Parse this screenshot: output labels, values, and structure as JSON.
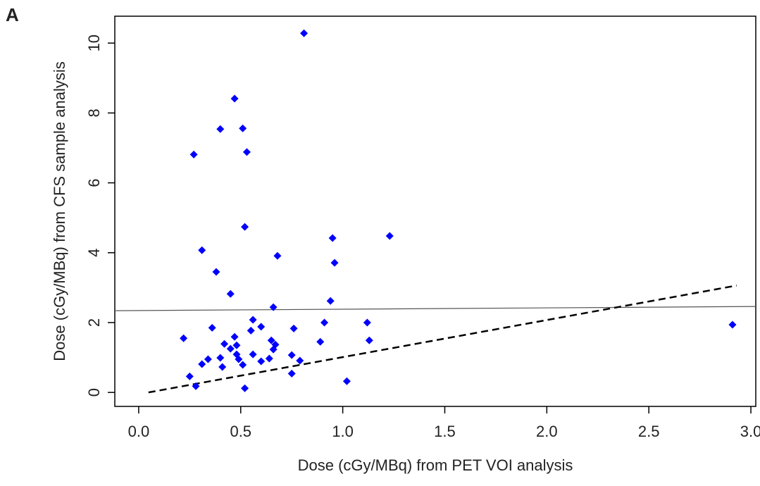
{
  "chart_data": {
    "type": "scatter",
    "panel_label": "A",
    "x_label": "Dose (cGy/MBq) from PET VOI analysis",
    "y_label": "Dose (cGy/MBq) from CFS sample analysis",
    "xlim": [
      -0.117,
      3.024
    ],
    "ylim": [
      -0.4,
      10.77
    ],
    "xticks": [
      {
        "value": 0,
        "label": "0.0"
      },
      0.5,
      {
        "value": 1,
        "label": "1.0"
      },
      1.5,
      {
        "value": 2,
        "label": "2.0"
      },
      2.5,
      {
        "value": 3,
        "label": "3.0"
      }
    ],
    "yticks": [
      0,
      2,
      4,
      6,
      8,
      10
    ],
    "color": "#0000ff",
    "x": [
      0.81,
      0.47,
      0.4,
      0.51,
      0.27,
      0.53,
      0.52,
      0.31,
      1.23,
      0.95,
      0.68,
      0.96,
      0.38,
      0.45,
      0.94,
      0.66,
      0.56,
      0.22,
      0.36,
      0.55,
      0.6,
      0.76,
      0.91,
      1.12,
      2.91,
      0.47,
      0.42,
      0.45,
      0.65,
      0.67,
      0.66,
      0.48,
      0.89,
      1.13,
      0.48,
      0.49,
      0.56,
      0.4,
      0.41,
      0.34,
      0.31,
      0.51,
      0.6,
      0.64,
      0.75,
      0.79,
      0.75,
      0.25,
      0.28,
      0.52,
      1.02
    ],
    "y": [
      10.28,
      8.41,
      7.54,
      7.56,
      6.81,
      6.88,
      4.74,
      4.07,
      4.48,
      4.42,
      3.91,
      3.71,
      3.45,
      2.82,
      2.62,
      2.44,
      2.08,
      1.55,
      1.85,
      1.77,
      1.88,
      1.83,
      2.0,
      2.0,
      1.94,
      1.59,
      1.39,
      1.25,
      1.49,
      1.37,
      1.23,
      1.35,
      1.45,
      1.49,
      1.09,
      0.95,
      1.09,
      0.99,
      0.73,
      0.95,
      0.81,
      0.79,
      0.89,
      0.97,
      1.07,
      0.91,
      0.54,
      0.46,
      0.18,
      0.12,
      0.32
    ],
    "reference_lines": [
      {
        "x": [
          -0.117,
          3.024
        ],
        "y": [
          2.34,
          2.46
        ],
        "style": "solid",
        "color": "#555555"
      },
      {
        "x": [
          0.048,
          2.93
        ],
        "y": [
          0,
          3.06
        ],
        "style": "dashed",
        "color": "#000000"
      }
    ]
  }
}
